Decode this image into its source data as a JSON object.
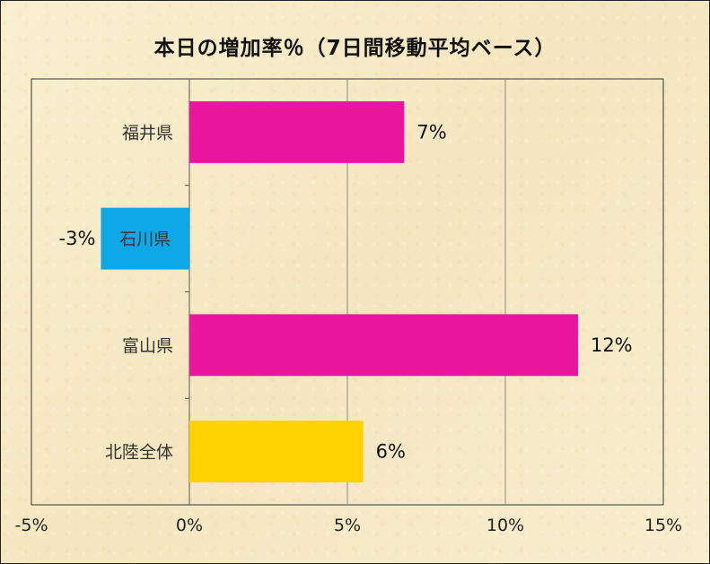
{
  "chart_data": {
    "type": "bar",
    "orientation": "horizontal",
    "title": "本日の増加率％（7日間移動平均ベース）",
    "categories": [
      "福井県",
      "石川県",
      "富山県",
      "北陸全体"
    ],
    "values": [
      6.8,
      -2.8,
      12.3,
      5.5
    ],
    "data_labels": [
      "7%",
      "-3%",
      "12%",
      "6%"
    ],
    "colors": [
      "#ea169f",
      "#0ea8e6",
      "#ea169f",
      "#fdd200"
    ],
    "xlim": [
      -5,
      15
    ],
    "x_ticks": [
      -5,
      0,
      5,
      10,
      15
    ],
    "x_tick_labels": [
      "-5%",
      "0%",
      "5%",
      "10%",
      "15%"
    ],
    "xlabel": "",
    "ylabel": "",
    "grid": "vertical major gridlines",
    "legend": "none"
  }
}
